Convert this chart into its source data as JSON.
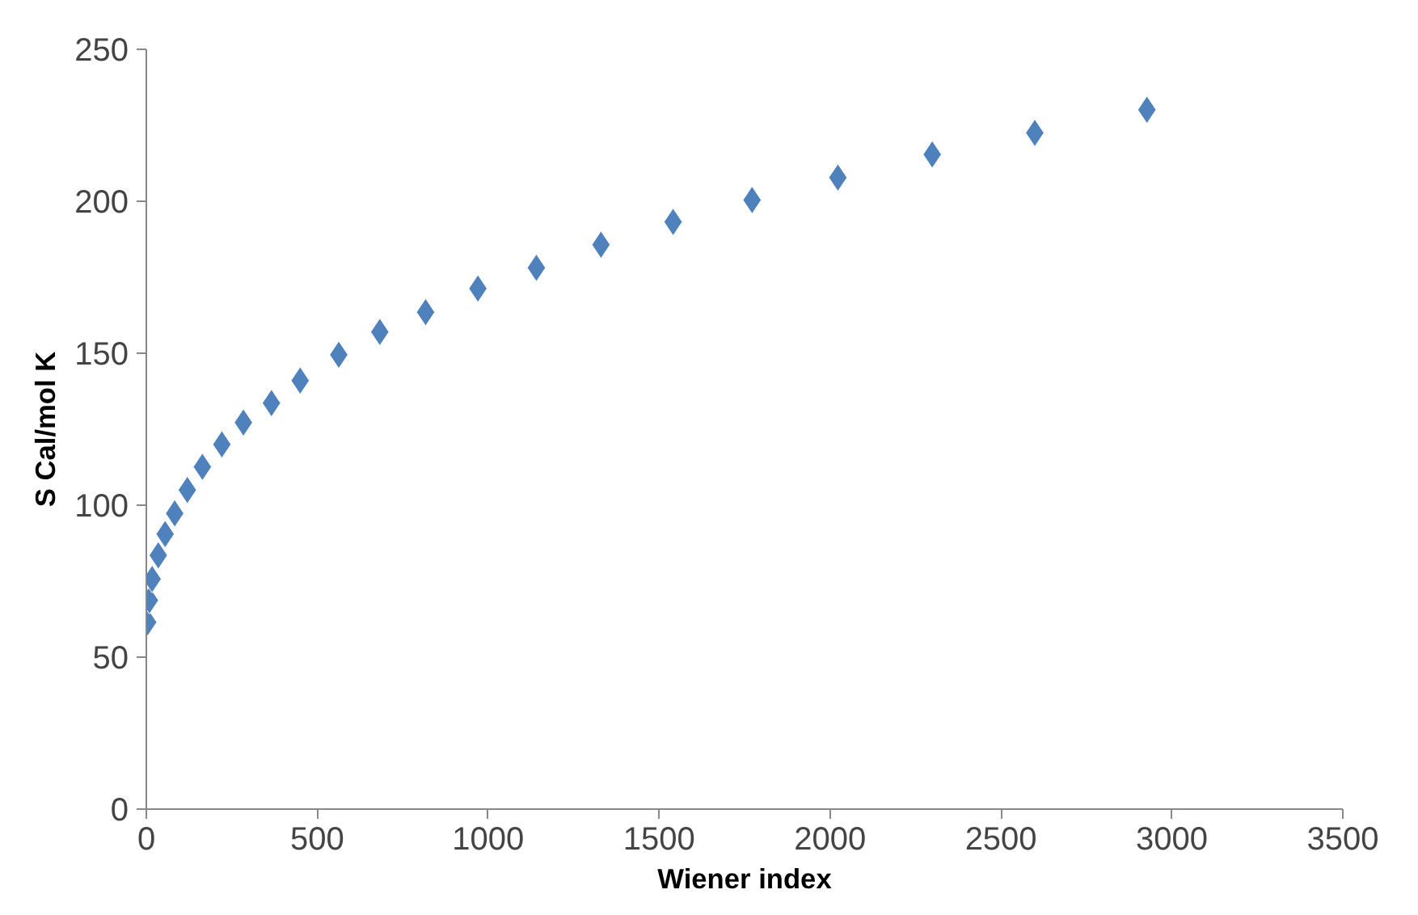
{
  "chart_data": {
    "type": "scatter",
    "xlabel": "Wiener index",
    "ylabel": "S Cal/mol K",
    "marker": "diamond",
    "grid": false,
    "x": [
      4,
      9,
      17,
      35,
      55,
      83,
      120,
      164,
      221,
      284,
      366,
      450,
      563,
      683,
      817,
      970,
      1141,
      1330,
      1541,
      1772,
      2023,
      2299,
      2599,
      2927
    ],
    "series": [
      {
        "color": "#4f81bd",
        "values": [
          61.5,
          68.7,
          75.7,
          83.5,
          90.5,
          97.3,
          105,
          112.6,
          120,
          127.2,
          133.6,
          141,
          149.5,
          157,
          163.5,
          171.3,
          178.1,
          185.7,
          193.2,
          200.4,
          207.8,
          215.4,
          222.5,
          230.1
        ]
      }
    ],
    "xlim": [
      0,
      3500
    ],
    "xticks": [
      0,
      500,
      1000,
      1500,
      2000,
      2500,
      3000,
      3500
    ],
    "ylim": [
      0,
      250
    ],
    "yticks": [
      0,
      50,
      100,
      150,
      200,
      250
    ]
  }
}
